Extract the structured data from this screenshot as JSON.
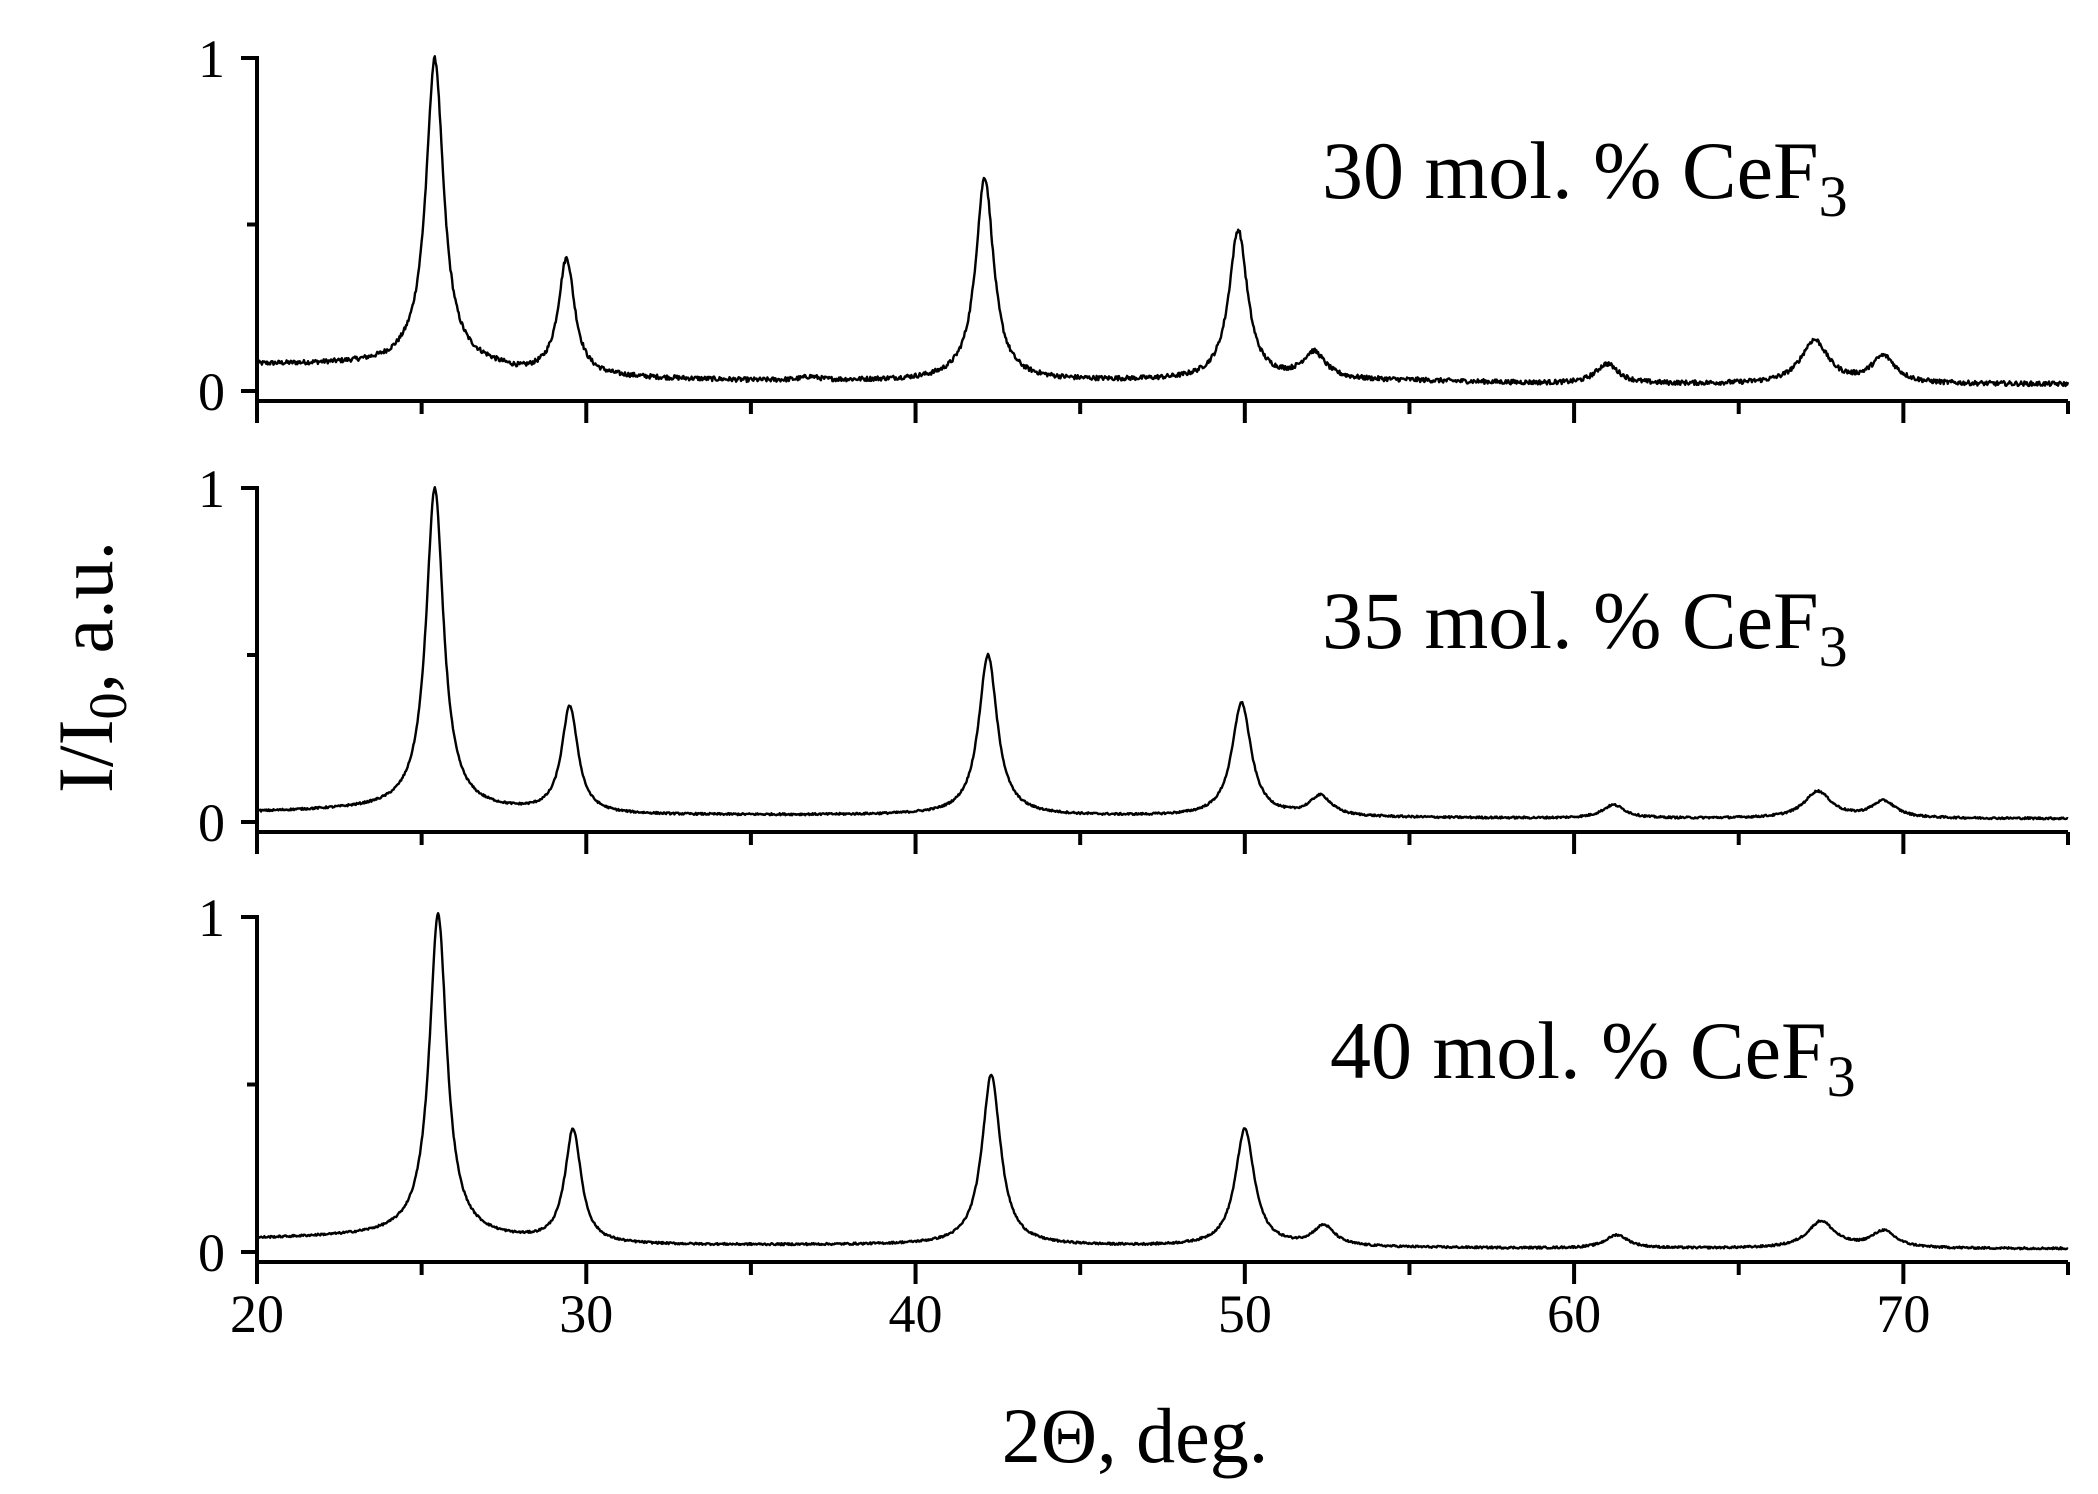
{
  "chart_data": {
    "type": "line",
    "xlabel": "2Θ, deg.",
    "ylabel": "I/I",
    "ylabel_sub": "0",
    "ylabel_suffix": ", a.u.",
    "xlim": [
      20,
      75
    ],
    "x_ticks": [
      "20",
      "30",
      "40",
      "50",
      "60",
      "70"
    ],
    "x_tick_values": [
      20,
      30,
      40,
      50,
      60,
      70
    ],
    "ylim": [
      0,
      1
    ],
    "y_ticks": [
      "0",
      "1"
    ],
    "grid": false,
    "panels": [
      {
        "label": "30 mol. % CeF",
        "label_sub": "3",
        "baseline": [
          [
            20,
            0.08
          ],
          [
            22,
            0.08
          ],
          [
            24,
            0.08
          ],
          [
            25,
            0.09
          ],
          [
            27,
            0.07
          ],
          [
            28,
            0.05
          ],
          [
            30,
            0.04
          ],
          [
            35,
            0.03
          ],
          [
            45,
            0.03
          ],
          [
            55,
            0.03
          ],
          [
            60,
            0.02
          ],
          [
            75,
            0.02
          ]
        ],
        "peaks": [
          {
            "x": 25.4,
            "height": 0.91,
            "width": 0.32
          },
          {
            "x": 29.4,
            "height": 0.35,
            "width": 0.3
          },
          {
            "x": 36.8,
            "height": 0.01,
            "width": 0.3
          },
          {
            "x": 42.1,
            "height": 0.61,
            "width": 0.33
          },
          {
            "x": 49.8,
            "height": 0.45,
            "width": 0.34
          },
          {
            "x": 52.1,
            "height": 0.08,
            "width": 0.42
          },
          {
            "x": 61.0,
            "height": 0.06,
            "width": 0.42
          },
          {
            "x": 67.3,
            "height": 0.13,
            "width": 0.5
          },
          {
            "x": 69.4,
            "height": 0.08,
            "width": 0.45
          }
        ],
        "noise": 0.007
      },
      {
        "label": "35 mol. % CeF",
        "label_sub": "3",
        "baseline": [
          [
            20,
            0.03
          ],
          [
            25,
            0.04
          ],
          [
            30,
            0.02
          ],
          [
            40,
            0.02
          ],
          [
            60,
            0.01
          ],
          [
            75,
            0.01
          ]
        ],
        "peaks": [
          {
            "x": 25.4,
            "height": 0.96,
            "width": 0.32
          },
          {
            "x": 29.5,
            "height": 0.32,
            "width": 0.3
          },
          {
            "x": 42.2,
            "height": 0.48,
            "width": 0.34
          },
          {
            "x": 49.9,
            "height": 0.34,
            "width": 0.35
          },
          {
            "x": 52.3,
            "height": 0.06,
            "width": 0.4
          },
          {
            "x": 61.2,
            "height": 0.04,
            "width": 0.42
          },
          {
            "x": 67.4,
            "height": 0.08,
            "width": 0.5
          },
          {
            "x": 69.4,
            "height": 0.05,
            "width": 0.45
          }
        ],
        "noise": 0.003
      },
      {
        "label": "40 mol. % CeF",
        "label_sub": "3",
        "baseline": [
          [
            20,
            0.04
          ],
          [
            25,
            0.05
          ],
          [
            30,
            0.02
          ],
          [
            40,
            0.02
          ],
          [
            60,
            0.01
          ],
          [
            75,
            0.01
          ]
        ],
        "peaks": [
          {
            "x": 25.5,
            "height": 0.96,
            "width": 0.32
          },
          {
            "x": 29.6,
            "height": 0.34,
            "width": 0.3
          },
          {
            "x": 42.3,
            "height": 0.51,
            "width": 0.34
          },
          {
            "x": 50.0,
            "height": 0.35,
            "width": 0.35
          },
          {
            "x": 52.4,
            "height": 0.06,
            "width": 0.4
          },
          {
            "x": 61.3,
            "height": 0.04,
            "width": 0.42
          },
          {
            "x": 67.5,
            "height": 0.08,
            "width": 0.5
          },
          {
            "x": 69.4,
            "height": 0.05,
            "width": 0.45
          }
        ],
        "noise": 0.003
      }
    ]
  }
}
